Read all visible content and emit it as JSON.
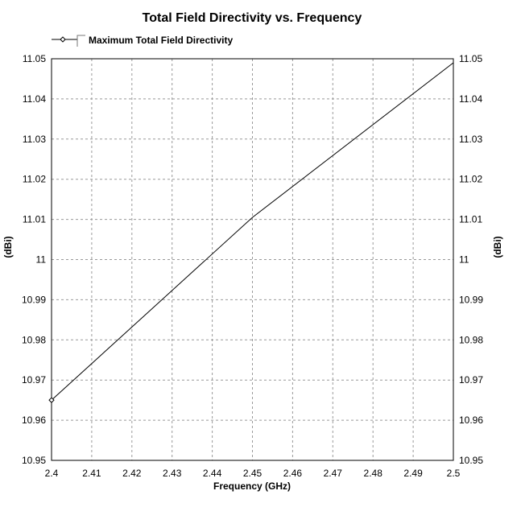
{
  "chart_data": {
    "type": "line",
    "title": "Total Field Directivity vs. Frequency",
    "xlabel": "Frequency (GHz)",
    "ylabel": "(dBi)",
    "ylabel_right": "(dBi)",
    "xlim": [
      2.4,
      2.5
    ],
    "ylim": [
      10.95,
      11.05
    ],
    "x_ticks": [
      "2.4",
      "2.41",
      "2.42",
      "2.43",
      "2.44",
      "2.45",
      "2.46",
      "2.47",
      "2.48",
      "2.49",
      "2.5"
    ],
    "y_ticks": [
      "10.95",
      "10.96",
      "10.97",
      "10.98",
      "10.99",
      "11",
      "11.01",
      "11.02",
      "11.03",
      "11.04",
      "11.05"
    ],
    "grid": true,
    "legend_position": "top-left",
    "series": [
      {
        "name": "Maximum Total Field Directivity",
        "color": "#000000",
        "marker": "diamond",
        "x": [
          2.4,
          2.45,
          2.5
        ],
        "y": [
          10.965,
          11.0105,
          11.049
        ]
      }
    ]
  }
}
